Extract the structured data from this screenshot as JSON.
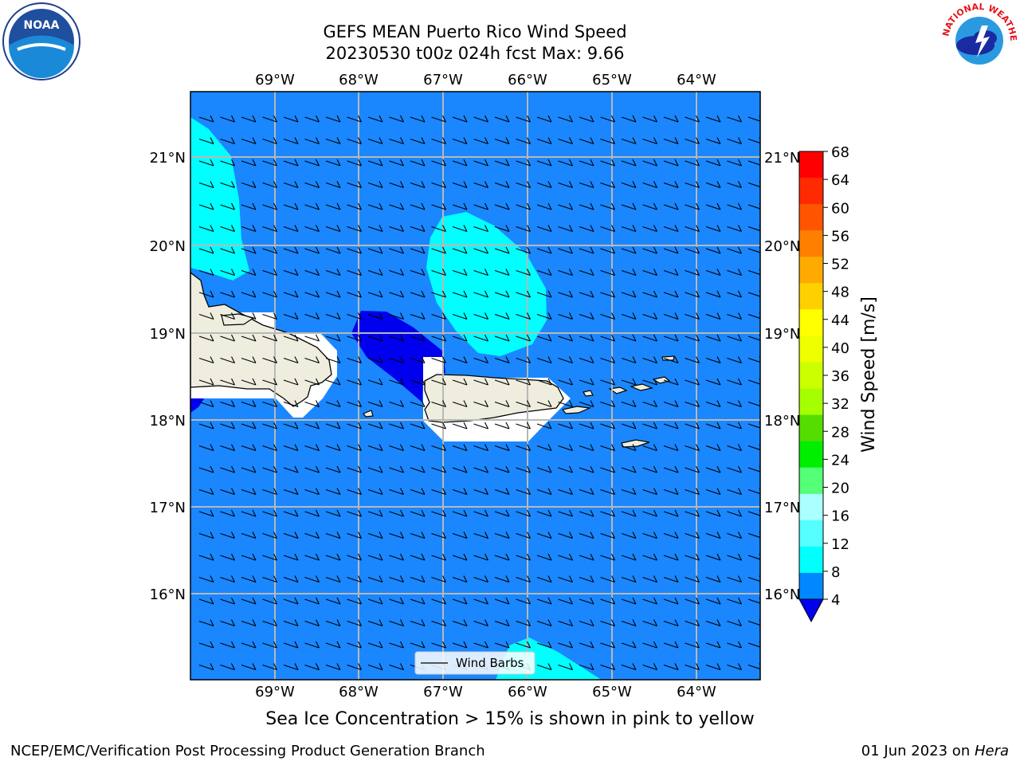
{
  "title": {
    "line1": "GEFS MEAN Puerto Rico Wind Speed",
    "line2": "20230530 t00z 024h fcst   Max: 9.66"
  },
  "logos": {
    "left": {
      "icon": "noaa-logo",
      "text": "NOAA"
    },
    "right": {
      "icon": "nws-logo",
      "text": "NATIONAL WEATHER SERVICE"
    }
  },
  "map": {
    "lon_labels": [
      "69°W",
      "68°W",
      "67°W",
      "66°W",
      "65°W",
      "64°W"
    ],
    "lat_labels": [
      "21°N",
      "20°N",
      "19°N",
      "18°N",
      "17°N",
      "16°N"
    ],
    "legend_label": "Wind Barbs",
    "ocean_color": "#1a87ff",
    "land_color": "#eeedde"
  },
  "colorbar": {
    "label": "Wind Speed [m/s]",
    "ticks": [
      "68",
      "64",
      "60",
      "56",
      "52",
      "48",
      "44",
      "40",
      "36",
      "32",
      "28",
      "24",
      "20",
      "16",
      "12",
      "8",
      "4"
    ],
    "colors": [
      "#ff0000",
      "#ff2a00",
      "#ff5500",
      "#ff8000",
      "#ffaa00",
      "#ffd000",
      "#ffff00",
      "#eeff00",
      "#ccff00",
      "#a6ff00",
      "#55dd00",
      "#00ee00",
      "#55ff77",
      "#aaffff",
      "#55ffff",
      "#00ffff",
      "#0088ff"
    ],
    "under_color": "#0000ee"
  },
  "caption": "Sea Ice Concentration > 15% is shown in pink to yellow",
  "footer": {
    "left": "NCEP/EMC/Verification Post Processing Product Generation Branch",
    "date": "01 Jun 2023 on ",
    "host": "Hera"
  }
}
